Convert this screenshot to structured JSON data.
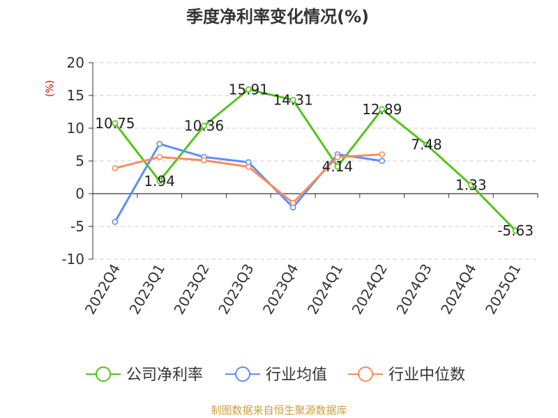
{
  "chart_data": {
    "type": "line",
    "title": "季度净利率变化情况(%)",
    "ylabel": "(%)",
    "xlabel": "",
    "ylim": [
      -10,
      20
    ],
    "yticks": [
      20,
      15,
      10,
      5,
      0,
      -5,
      -10
    ],
    "grid": true,
    "legend_position": "bottom",
    "categories": [
      "2022Q4",
      "2023Q1",
      "2023Q2",
      "2023Q3",
      "2023Q4",
      "2024Q1",
      "2024Q2",
      "2024Q3",
      "2024Q4",
      "2025Q1"
    ],
    "series": [
      {
        "name": "公司净利率",
        "color": "#52c41a",
        "values": [
          10.75,
          1.94,
          10.36,
          15.91,
          14.31,
          4.14,
          12.89,
          7.48,
          1.33,
          -5.63
        ],
        "labels": [
          "10.75",
          "1.94",
          "10.36",
          "15.91",
          "14.31",
          "4.14",
          "12.89",
          "7.48",
          "1.33",
          "-5.63"
        ]
      },
      {
        "name": "行业均值",
        "color": "#5b8ff9",
        "values": [
          -4.3,
          7.6,
          5.6,
          4.8,
          -2.1,
          6.0,
          5.0,
          null,
          null,
          null
        ]
      },
      {
        "name": "行业中位数",
        "color": "#f98c5b",
        "values": [
          3.9,
          5.6,
          5.1,
          4.1,
          -1.4,
          5.6,
          6.0,
          null,
          null,
          null
        ]
      }
    ]
  },
  "footer": {
    "source": "制图数据来自恒生聚源数据库",
    "source_color": "#c8a040"
  },
  "colors": {
    "axis": "#333333",
    "grid": "#cccccc",
    "unit": "#cc0000"
  }
}
